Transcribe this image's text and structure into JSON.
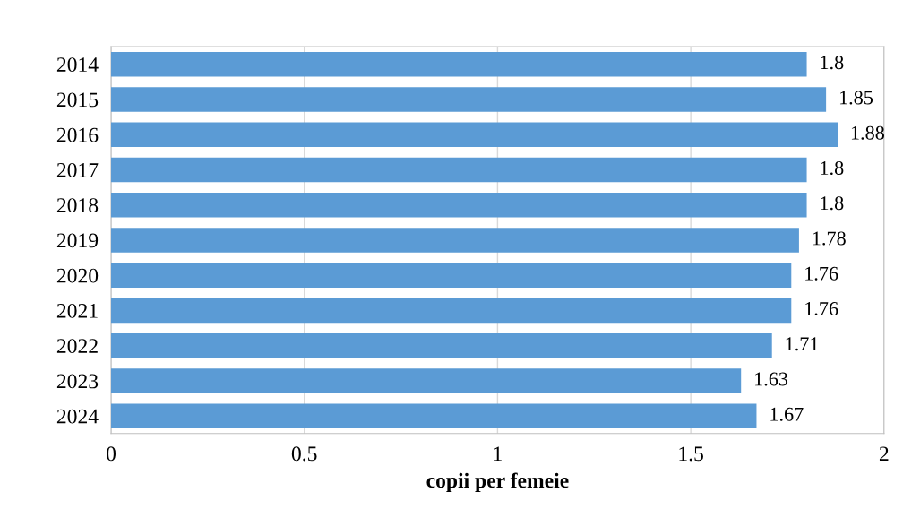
{
  "chart_data": {
    "type": "bar",
    "orientation": "horizontal",
    "xlabel": "copii per femeie",
    "categories": [
      "2014",
      "2015",
      "2016",
      "2017",
      "2018",
      "2019",
      "2020",
      "2021",
      "2022",
      "2023",
      "2024"
    ],
    "values": [
      1.8,
      1.85,
      1.88,
      1.8,
      1.8,
      1.78,
      1.76,
      1.76,
      1.71,
      1.63,
      1.67
    ],
    "color": "#5b9bd5",
    "xlim": [
      0,
      2
    ],
    "xticks": [
      0,
      0.5,
      1,
      1.5,
      2
    ],
    "grid": "x",
    "data_labels": true
  }
}
